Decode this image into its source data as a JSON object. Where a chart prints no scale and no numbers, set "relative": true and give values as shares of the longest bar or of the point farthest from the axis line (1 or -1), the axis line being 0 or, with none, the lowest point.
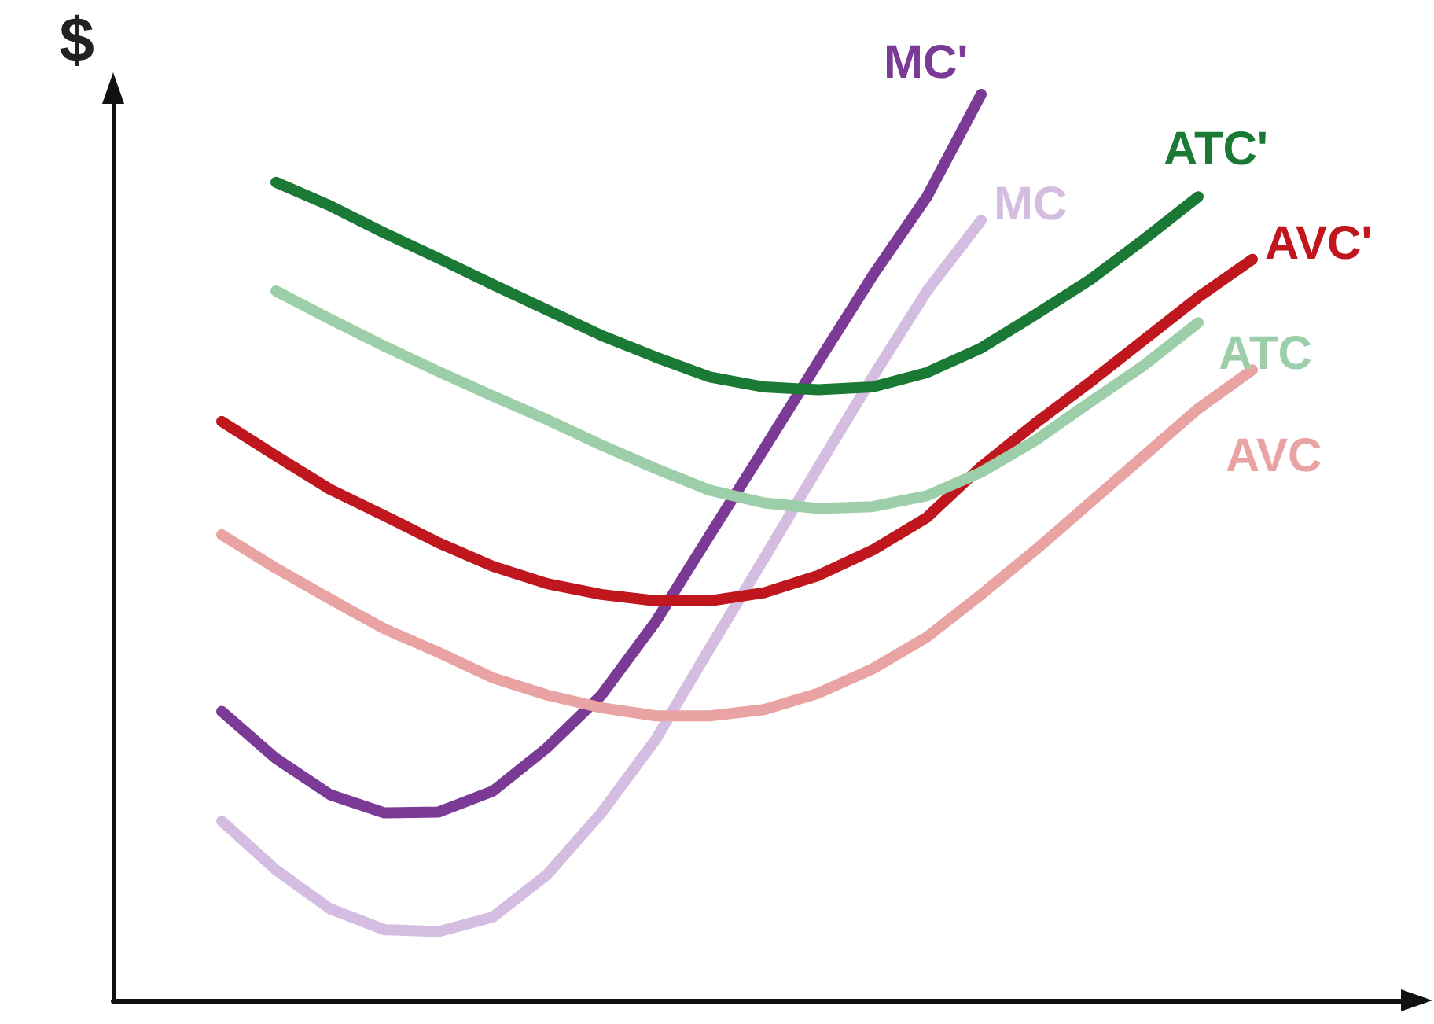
{
  "chart_data": {
    "type": "line",
    "relative": true,
    "ylabel": "$",
    "grid": false,
    "legend": false,
    "marker": "none",
    "line_style": "solid",
    "categories": [
      null,
      null,
      null,
      null,
      null,
      null,
      null,
      null,
      null,
      null,
      null,
      null,
      null,
      null,
      null,
      null,
      null,
      null,
      null,
      null,
      null,
      null,
      null,
      null,
      null
    ],
    "series": [
      {
        "name": "MC'",
        "color": "#7b3a96",
        "values": [
          null,
          null,
          0.319,
          0.267,
          0.227,
          0.207,
          0.208,
          0.231,
          0.279,
          0.337,
          0.418,
          0.514,
          0.609,
          0.705,
          0.8,
          0.887,
          1,
          null,
          null,
          null,
          null,
          null,
          null,
          null,
          null
        ]
      },
      {
        "name": "MC",
        "color": "#d4bde0",
        "values": [
          null,
          null,
          0.198,
          0.144,
          0.101,
          0.078,
          0.076,
          0.092,
          0.139,
          0.207,
          0.288,
          0.389,
          0.488,
          0.589,
          0.688,
          0.783,
          0.861,
          null,
          null,
          null,
          null,
          null,
          null,
          null,
          null
        ]
      },
      {
        "name": "ATC'",
        "color": "#1a7a35",
        "values": [
          null,
          null,
          null,
          0.903,
          0.877,
          0.847,
          0.819,
          0.79,
          0.762,
          0.734,
          0.71,
          0.688,
          0.677,
          0.674,
          0.677,
          0.693,
          0.72,
          0.757,
          0.795,
          0.84,
          0.887,
          null,
          null,
          null,
          null
        ]
      },
      {
        "name": "AVC'",
        "color": "#c0161e",
        "values": [
          null,
          null,
          0.639,
          0.601,
          0.564,
          0.535,
          0.505,
          0.479,
          0.46,
          0.448,
          0.441,
          0.441,
          0.45,
          0.469,
          0.497,
          0.533,
          0.589,
          0.637,
          0.682,
          0.729,
          0.776,
          0.818,
          null,
          null,
          null
        ]
      },
      {
        "name": "ATC",
        "color": "#9ccfa9",
        "values": [
          null,
          null,
          null,
          0.783,
          0.752,
          0.722,
          0.694,
          0.667,
          0.641,
          0.613,
          0.587,
          0.563,
          0.549,
          0.543,
          0.545,
          0.557,
          0.583,
          0.618,
          0.66,
          0.701,
          0.748,
          null,
          null,
          null,
          null
        ]
      },
      {
        "name": "AVC",
        "color": "#e9a3a3",
        "values": [
          null,
          null,
          0.514,
          0.477,
          0.443,
          0.41,
          0.384,
          0.356,
          0.337,
          0.323,
          0.314,
          0.314,
          0.321,
          0.339,
          0.366,
          0.401,
          0.448,
          0.497,
          0.549,
          0.601,
          0.653,
          0.696,
          null,
          null,
          null
        ]
      }
    ]
  }
}
